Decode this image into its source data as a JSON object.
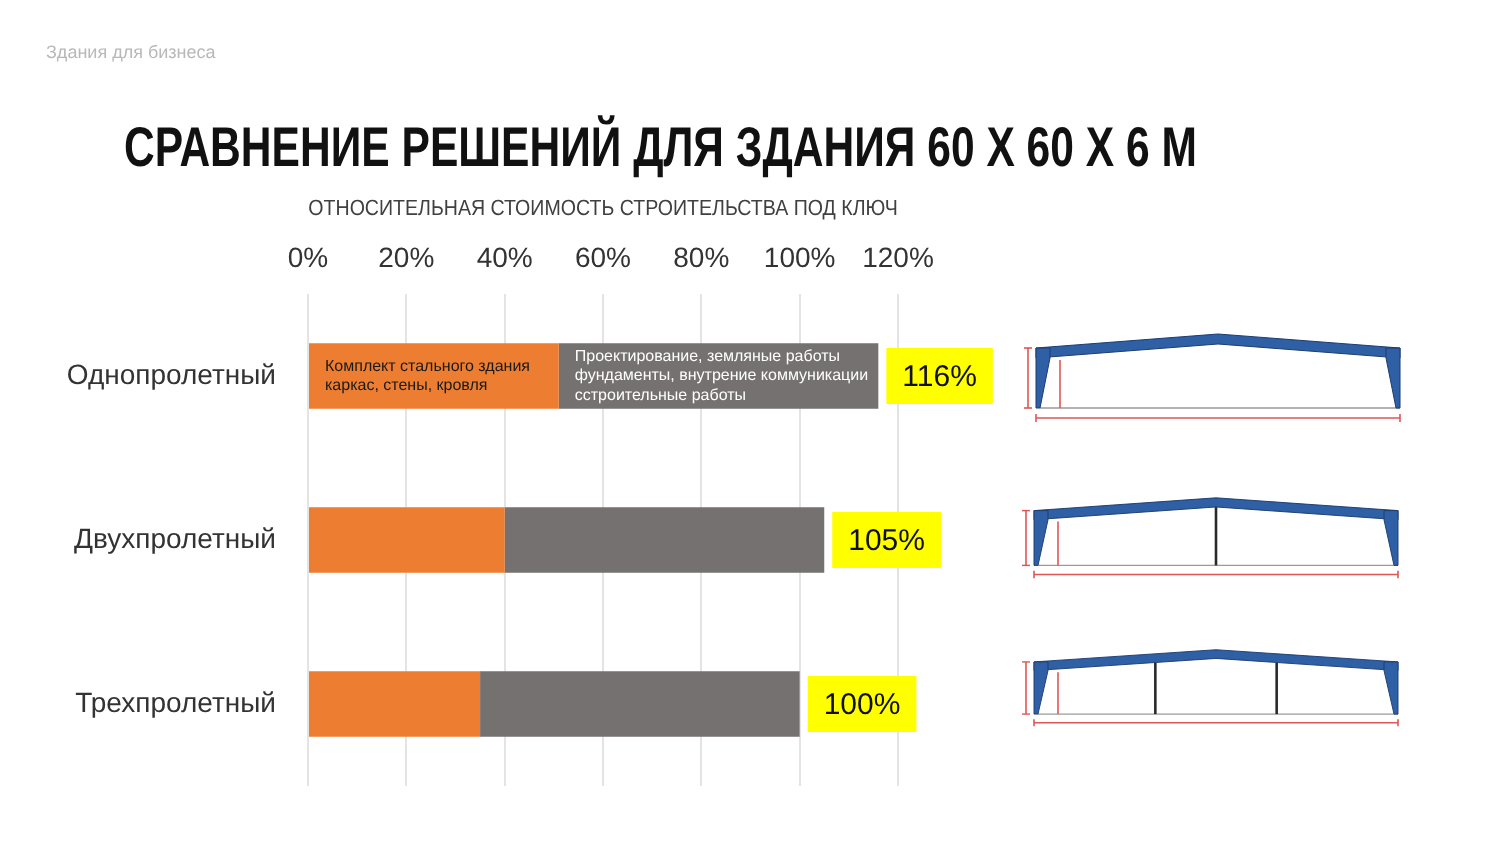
{
  "chart_data": {
    "type": "bar",
    "orientation": "horizontal",
    "stacked": true,
    "title": "СРАВНЕНИЕ РЕШЕНИЙ ДЛЯ ЗДАНИЯ 60 X 60 X 6 М",
    "xlabel": "ОТНОСИТЕЛЬНАЯ СТОИМОСТЬ СТРОИТЕЛЬСТВА ПОД КЛЮЧ",
    "categories": [
      "Однопролетный",
      "Двухпролетный",
      "Трехпролетный"
    ],
    "series": [
      {
        "name": "Комплект стального здания каркас, стены, кровля",
        "color": "#ed7d31",
        "values": [
          51,
          40,
          35
        ]
      },
      {
        "name": "Проектирование, земляные работы фундаменты, внутрение коммуникации сстроительные работы",
        "color": "#767171",
        "values": [
          65,
          65,
          65
        ]
      }
    ],
    "xlim": [
      0,
      120
    ],
    "xticks": [
      {
        "value": 0,
        "label": "0%"
      },
      {
        "value": 20,
        "label": "20%"
      },
      {
        "value": 40,
        "label": "40%"
      },
      {
        "value": 60,
        "label": "60%"
      },
      {
        "value": 80,
        "label": "80%"
      },
      {
        "value": 100,
        "label": "100%"
      },
      {
        "value": 120,
        "label": "120%"
      }
    ],
    "totals": [
      "116%",
      "105%",
      "100%"
    ],
    "grid": "x",
    "annotations": [
      "Здания для бизнеса"
    ]
  }
}
